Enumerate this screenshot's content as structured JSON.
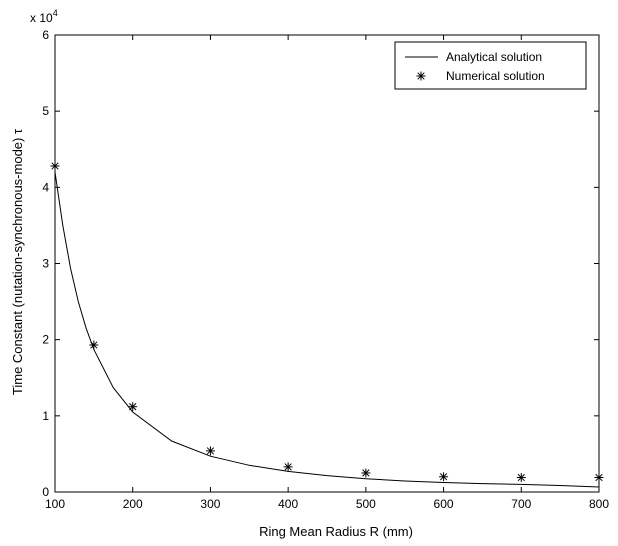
{
  "chart_data": {
    "type": "line",
    "title": "",
    "xlabel": "Ring Mean Radius  R (mm)",
    "ylabel": "Time Constant (nutation-synchronous-mode)  τ",
    "y_exponent_label": "x 10",
    "y_exponent_power": "4",
    "xlim": [
      100,
      800
    ],
    "ylim": [
      0,
      60000
    ],
    "x_ticks": [
      100,
      200,
      300,
      400,
      500,
      600,
      700,
      800
    ],
    "y_ticks": [
      0,
      10000,
      20000,
      30000,
      40000,
      50000,
      60000
    ],
    "y_tick_labels": [
      "0",
      "1",
      "2",
      "3",
      "4",
      "5",
      "6"
    ],
    "x_tick_labels": [
      "100",
      "200",
      "300",
      "400",
      "500",
      "600",
      "700",
      "800"
    ],
    "grid": false,
    "legend_position": "top-right",
    "series": [
      {
        "name": "Analytical solution",
        "style": "line",
        "x": [
          100,
          110,
          120,
          130,
          140,
          150,
          175,
          200,
          250,
          300,
          350,
          400,
          450,
          500,
          550,
          600,
          650,
          700,
          750,
          800
        ],
        "y": [
          42000,
          35000,
          29400,
          25000,
          21500,
          18700,
          13700,
          10500,
          6700,
          4700,
          3500,
          2700,
          2150,
          1750,
          1450,
          1250,
          1100,
          1000,
          850,
          650
        ]
      },
      {
        "name": "Numerical solution",
        "style": "marker",
        "x": [
          100,
          150,
          200,
          300,
          400,
          500,
          600,
          700,
          800
        ],
        "y": [
          42800,
          19300,
          11200,
          5400,
          3300,
          2500,
          2000,
          1900,
          1900
        ]
      }
    ]
  }
}
